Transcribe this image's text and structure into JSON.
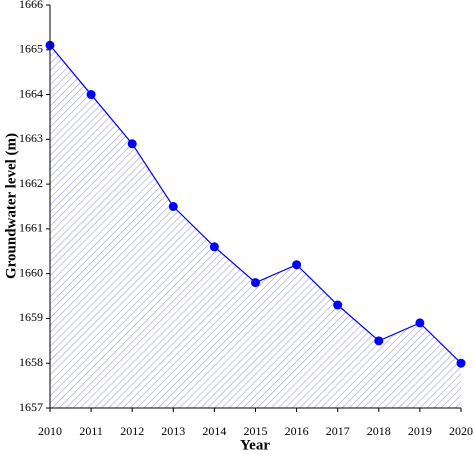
{
  "chart_data": {
    "type": "line",
    "x_label": "Year",
    "y_label": "Groundwater level (m)",
    "x": [
      2010,
      2011,
      2012,
      2013,
      2014,
      2015,
      2016,
      2017,
      2018,
      2019,
      2020
    ],
    "series": [
      {
        "color": "#0000ff",
        "values": [
          1665.1,
          1664.0,
          1662.9,
          1661.5,
          1660.6,
          1659.8,
          1660.2,
          1659.3,
          1658.5,
          1658.9,
          1658.0
        ]
      }
    ],
    "xlim": [
      2010,
      2020
    ],
    "xticks": [
      2010,
      2011,
      2012,
      2013,
      2014,
      2015,
      2016,
      2017,
      2018,
      2019,
      2020
    ],
    "ylim": [
      1657,
      1666
    ],
    "yticks": [
      1657,
      1658,
      1659,
      1660,
      1661,
      1662,
      1663,
      1664,
      1665,
      1666
    ],
    "area_fill": "#a0a0d8"
  }
}
